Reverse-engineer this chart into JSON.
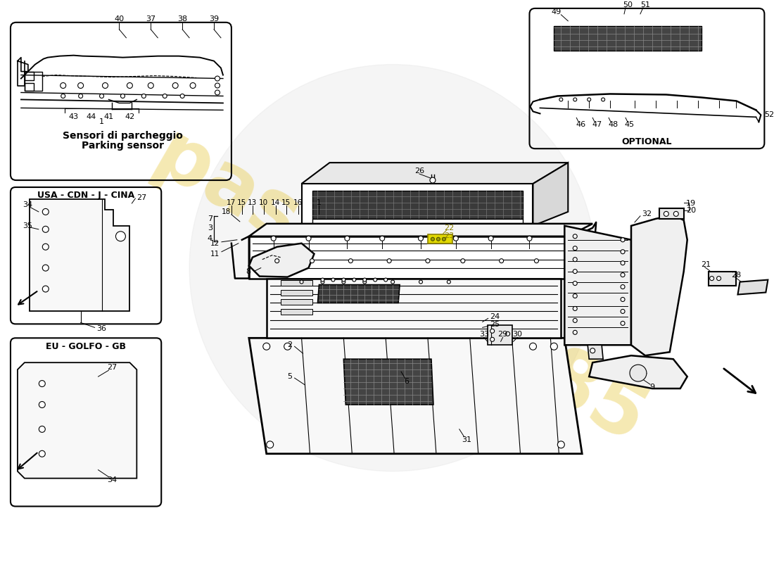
{
  "bg_color": "#ffffff",
  "watermark_text": "passion1985",
  "watermark_color": "#e8c840",
  "optional_label": "OPTIONAL",
  "parking_sensor_label_it": "Sensori di parcheggio",
  "parking_sensor_label_en": "Parking sensor",
  "usa_label": "USA - CDN - J - CINA",
  "eu_label": "EU - GOLFO - GB"
}
